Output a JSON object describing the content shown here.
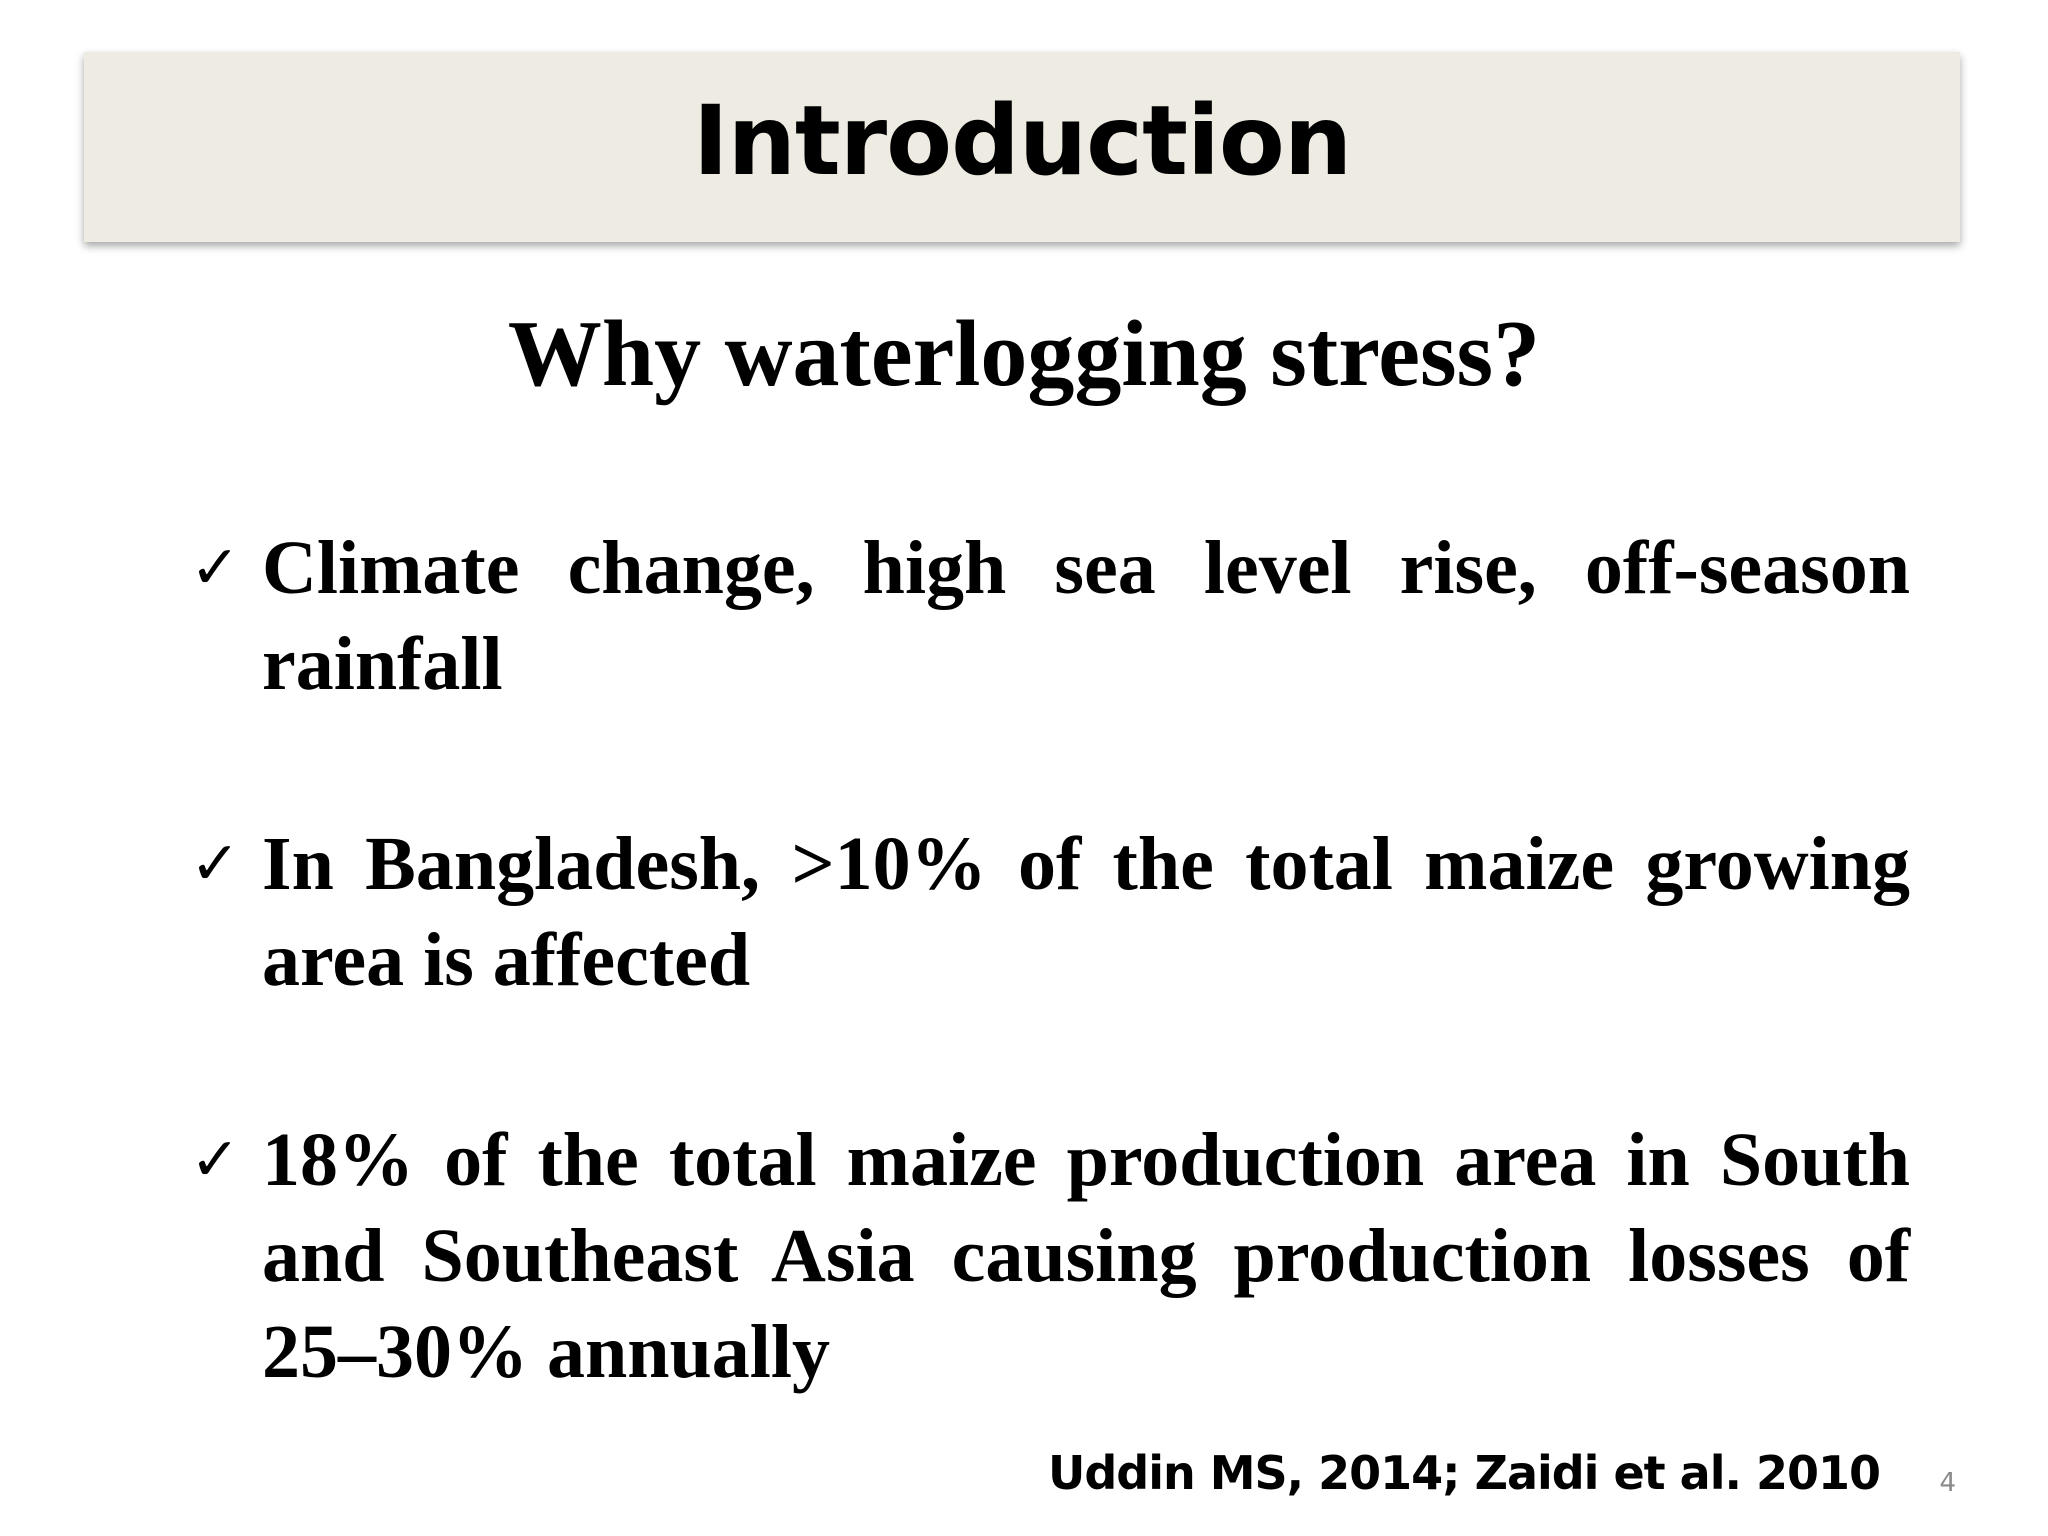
{
  "slide": {
    "title": "Introduction",
    "subtitle": "Why waterlogging stress?",
    "bullets": [
      {
        "icon": "check-icon",
        "text": "Climate change, high sea level rise, off-season rainfall"
      },
      {
        "icon": "check-icon",
        "text": "In Bangladesh, >10% of the total maize growing area is affected"
      },
      {
        "icon": "check-icon",
        "text": "18% of the total maize production area in South and Southeast Asia causing production losses of 25–30% annually"
      }
    ],
    "citation": "Uddin MS, 2014; Zaidi et al. 2010",
    "page_number": "4"
  }
}
